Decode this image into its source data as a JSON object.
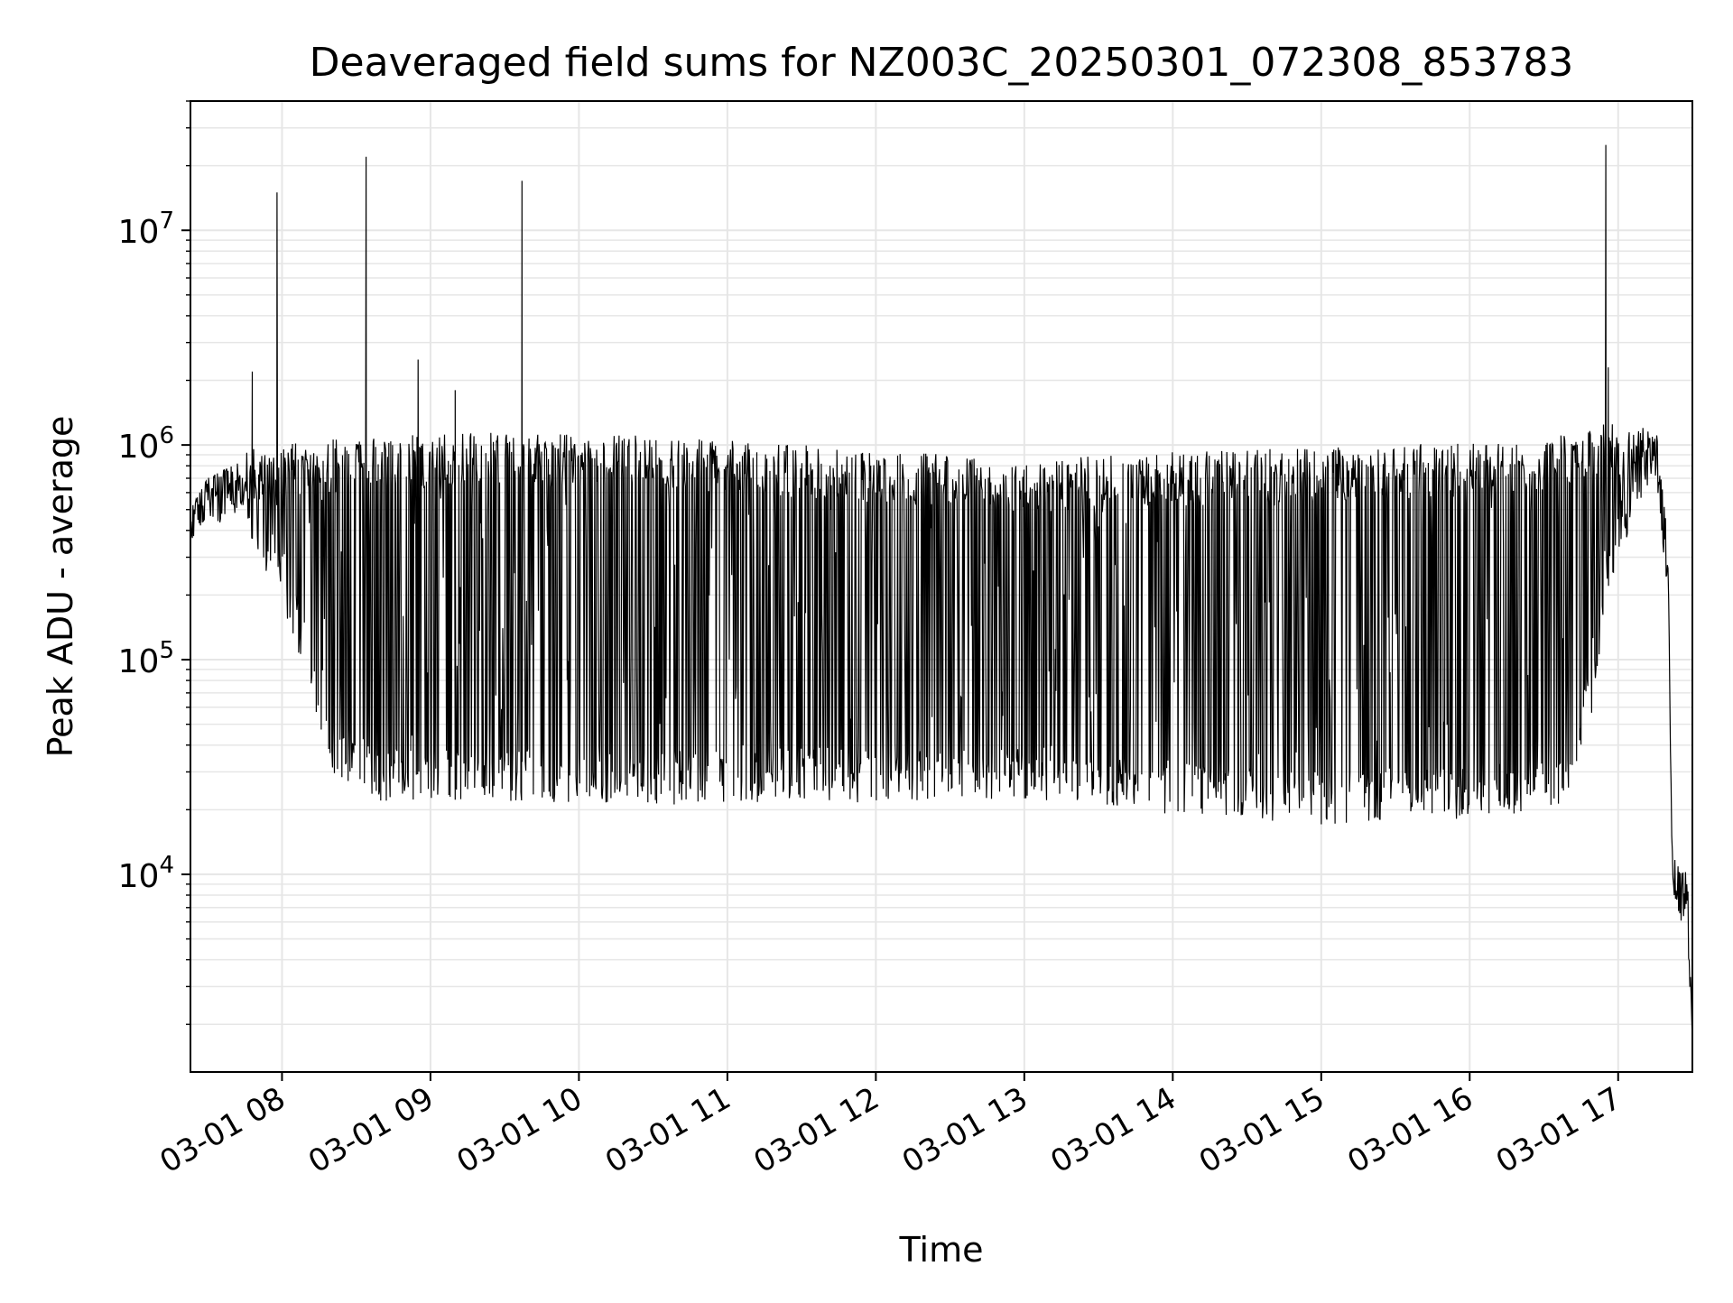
{
  "chart_data": {
    "type": "line",
    "title": "Deaveraged field sums for NZ003C_20250301_072308_853783",
    "xlabel": "Time",
    "ylabel": "Peak ADU - average",
    "xlim": [
      "2025-03-01 07:23",
      "2025-03-01 17:30"
    ],
    "ylim": [
      1200,
      40000000
    ],
    "yscale": "log",
    "grid": true,
    "grid_minor": true,
    "line_color": "#000000",
    "x_tick_labels": [
      "03-01 08",
      "03-01 09",
      "03-01 10",
      "03-01 11",
      "03-01 12",
      "03-01 13",
      "03-01 14",
      "03-01 15",
      "03-01 16",
      "03-01 17"
    ],
    "x_tick_values": [
      "2025-03-01 08:00",
      "2025-03-01 09:00",
      "2025-03-01 10:00",
      "2025-03-01 11:00",
      "2025-03-01 12:00",
      "2025-03-01 13:00",
      "2025-03-01 14:00",
      "2025-03-01 15:00",
      "2025-03-01 16:00",
      "2025-03-01 17:00"
    ],
    "y_tick_labels": [
      {
        "base": "10",
        "exp": "4",
        "value": 10000
      },
      {
        "base": "10",
        "exp": "5",
        "value": 100000
      },
      {
        "base": "10",
        "exp": "6",
        "value": 1000000
      },
      {
        "base": "10",
        "exp": "7",
        "value": 10000000
      }
    ],
    "series": [
      {
        "upper_envelope": [
          [
            "2025-03-01 07:23",
            500000
          ],
          [
            "2025-03-01 07:30",
            700000
          ],
          [
            "2025-03-01 07:40",
            800000
          ],
          [
            "2025-03-01 07:47",
            1000000
          ],
          [
            "2025-03-01 07:52",
            900000
          ],
          [
            "2025-03-01 08:00",
            1000000
          ],
          [
            "2025-03-01 08:30",
            1100000
          ],
          [
            "2025-03-01 09:30",
            1150000
          ],
          [
            "2025-03-01 10:30",
            1100000
          ],
          [
            "2025-03-01 11:30",
            1000000
          ],
          [
            "2025-03-01 12:30",
            900000
          ],
          [
            "2025-03-01 13:00",
            850000
          ],
          [
            "2025-03-01 13:30",
            900000
          ],
          [
            "2025-03-01 14:30",
            950000
          ],
          [
            "2025-03-01 15:30",
            1000000
          ],
          [
            "2025-03-01 16:30",
            1050000
          ],
          [
            "2025-03-01 16:55",
            1300000
          ],
          [
            "2025-03-01 17:10",
            1200000
          ],
          [
            "2025-03-01 17:15",
            1300000
          ],
          [
            "2025-03-01 17:20",
            400000
          ],
          [
            "2025-03-01 17:22",
            12000
          ],
          [
            "2025-03-01 17:28",
            10000
          ],
          [
            "2025-03-01 17:30",
            2000
          ]
        ],
        "lower_envelope": [
          [
            "2025-03-01 07:23",
            450000
          ],
          [
            "2025-03-01 07:30",
            600000
          ],
          [
            "2025-03-01 07:40",
            500000
          ],
          [
            "2025-03-01 07:50",
            300000
          ],
          [
            "2025-03-01 08:00",
            180000
          ],
          [
            "2025-03-01 08:10",
            80000
          ],
          [
            "2025-03-01 08:20",
            30000
          ],
          [
            "2025-03-01 08:40",
            22000
          ],
          [
            "2025-03-01 09:30",
            22000
          ],
          [
            "2025-03-01 10:30",
            21000
          ],
          [
            "2025-03-01 11:30",
            22000
          ],
          [
            "2025-03-01 12:30",
            21000
          ],
          [
            "2025-03-01 13:00",
            22000
          ],
          [
            "2025-03-01 14:00",
            19000
          ],
          [
            "2025-03-01 15:00",
            17000
          ],
          [
            "2025-03-01 16:00",
            18000
          ],
          [
            "2025-03-01 16:40",
            20000
          ],
          [
            "2025-03-01 16:50",
            60000
          ],
          [
            "2025-03-01 16:55",
            200000
          ],
          [
            "2025-03-01 17:05",
            400000
          ],
          [
            "2025-03-01 17:15",
            800000
          ],
          [
            "2025-03-01 17:20",
            200000
          ],
          [
            "2025-03-01 17:22",
            8000
          ],
          [
            "2025-03-01 17:28",
            7000
          ],
          [
            "2025-03-01 17:30",
            1900
          ]
        ],
        "spikes": [
          [
            "2025-03-01 07:58",
            15000000
          ],
          [
            "2025-03-01 08:34",
            22000000
          ],
          [
            "2025-03-01 08:55",
            2500000
          ],
          [
            "2025-03-01 09:37",
            17000000
          ],
          [
            "2025-03-01 07:48",
            2200000
          ],
          [
            "2025-03-01 09:10",
            1800000
          ],
          [
            "2025-03-01 16:55",
            25000000
          ],
          [
            "2025-03-01 16:56",
            2300000
          ]
        ]
      }
    ]
  }
}
